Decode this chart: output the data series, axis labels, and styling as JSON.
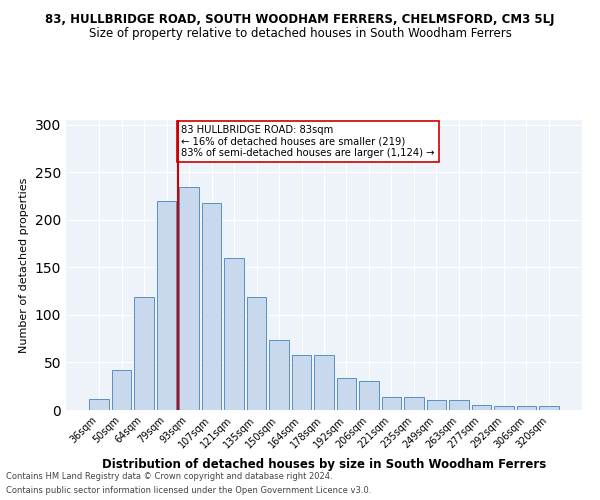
{
  "title": "83, HULLBRIDGE ROAD, SOUTH WOODHAM FERRERS, CHELMSFORD, CM3 5LJ",
  "subtitle": "Size of property relative to detached houses in South Woodham Ferrers",
  "xlabel": "Distribution of detached houses by size in South Woodham Ferrers",
  "ylabel": "Number of detached properties",
  "categories": [
    "36sqm",
    "50sqm",
    "64sqm",
    "79sqm",
    "93sqm",
    "107sqm",
    "121sqm",
    "135sqm",
    "150sqm",
    "164sqm",
    "178sqm",
    "192sqm",
    "206sqm",
    "221sqm",
    "235sqm",
    "249sqm",
    "263sqm",
    "277sqm",
    "292sqm",
    "306sqm",
    "320sqm"
  ],
  "values": [
    12,
    42,
    119,
    220,
    235,
    218,
    160,
    119,
    74,
    58,
    58,
    34,
    30,
    14,
    14,
    10,
    10,
    5,
    4,
    4,
    4
  ],
  "bar_color": "#c8d9ee",
  "bar_edge_color": "#5a8fc0",
  "vline_x_idx": 3,
  "vline_color": "#cc0000",
  "annotation_text": "83 HULLBRIDGE ROAD: 83sqm\n← 16% of detached houses are smaller (219)\n83% of semi-detached houses are larger (1,124) →",
  "annotation_box_color": "#ffffff",
  "annotation_box_edge": "#cc0000",
  "ylim": [
    0,
    305
  ],
  "yticks": [
    0,
    50,
    100,
    150,
    200,
    250,
    300
  ],
  "background_color": "#eef2f9",
  "footer1": "Contains HM Land Registry data © Crown copyright and database right 2024.",
  "footer2": "Contains public sector information licensed under the Open Government Licence v3.0.",
  "title_fontsize": 8.5,
  "subtitle_fontsize": 8.5,
  "xlabel_fontsize": 8.5,
  "ylabel_fontsize": 8,
  "tick_fontsize": 7,
  "footer_fontsize": 6
}
